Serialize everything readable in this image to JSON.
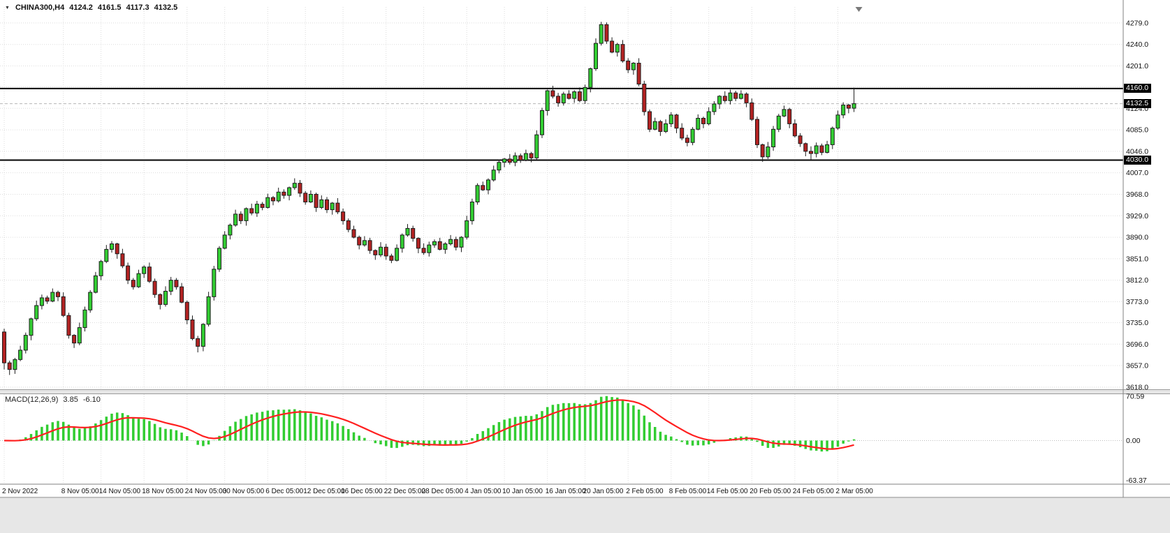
{
  "window": {
    "symbol_period": "CHINA300,H4",
    "ohlc": {
      "open": "4124.2",
      "high": "4161.5",
      "low": "4117.3",
      "close": "4132.5"
    }
  },
  "icons": {
    "symbol_dropdown": "▼"
  },
  "colors": {
    "up": "#32CD32",
    "down": "#B22222",
    "outline": "#1d1d1d",
    "histogram": "#32CD32",
    "signal": "#FF2020",
    "level_line": "#000000",
    "grid": "#DCDCDC",
    "badge_bg": "#000000",
    "badge_text": "#FFFFFF",
    "axis_text": "#111111"
  },
  "chart_data": {
    "type": "candlestick",
    "symbol": "CHINA300",
    "timeframe": "H4",
    "ylim": [
      3614,
      4308
    ],
    "grid": true,
    "price_axis_labels": [
      "4279.0",
      "4240.0",
      "4201.0",
      "4163.0",
      "4124.0",
      "4085.0",
      "4046.0",
      "4007.0",
      "3968.0",
      "3929.0",
      "3890.0",
      "3851.0",
      "3812.0",
      "3773.0",
      "3735.0",
      "3696.0",
      "3657.0",
      "3618.0"
    ],
    "horizontal_levels": [
      4160.0,
      4030.0
    ],
    "current_price": 4132.5,
    "price_badges": [
      {
        "label": "4160.0",
        "price": 4160.0,
        "kind": "level"
      },
      {
        "label": "4132.5",
        "price": 4132.5,
        "kind": "current"
      },
      {
        "label": "4030.0",
        "price": 4030.0,
        "kind": "level"
      }
    ],
    "time_ticks": [
      {
        "label": "2 Nov 2022",
        "bar": 0
      },
      {
        "label": "8 Nov 05:00",
        "bar": 11
      },
      {
        "label": "14 Nov 05:00",
        "bar": 18
      },
      {
        "label": "18 Nov 05:00",
        "bar": 26
      },
      {
        "label": "24 Nov 05:00",
        "bar": 34
      },
      {
        "label": "30 Nov 05:00",
        "bar": 41
      },
      {
        "label": "6 Dec 05:00",
        "bar": 49
      },
      {
        "label": "12 Dec 05:00",
        "bar": 56
      },
      {
        "label": "16 Dec 05:00",
        "bar": 63
      },
      {
        "label": "22 Dec 05:00",
        "bar": 71
      },
      {
        "label": "28 Dec 05:00",
        "bar": 78
      },
      {
        "label": "4 Jan 05:00",
        "bar": 86
      },
      {
        "label": "10 Jan 05:00",
        "bar": 93
      },
      {
        "label": "16 Jan 05:00",
        "bar": 101
      },
      {
        "label": "20 Jan 05:00",
        "bar": 108
      },
      {
        "label": "2 Feb 05:00",
        "bar": 116
      },
      {
        "label": "8 Feb 05:00",
        "bar": 124
      },
      {
        "label": "14 Feb 05:00",
        "bar": 131
      },
      {
        "label": "20 Feb 05:00",
        "bar": 139
      },
      {
        "label": "24 Feb 05:00",
        "bar": 147
      },
      {
        "label": "2 Mar 05:00",
        "bar": 155
      }
    ],
    "candles": [
      [
        3718,
        3724,
        3650,
        3662
      ],
      [
        3662,
        3666,
        3640,
        3650
      ],
      [
        3650,
        3671,
        3642,
        3668
      ],
      [
        3668,
        3693,
        3665,
        3685
      ],
      [
        3685,
        3717,
        3679,
        3712
      ],
      [
        3712,
        3744,
        3703,
        3742
      ],
      [
        3742,
        3775,
        3738,
        3766
      ],
      [
        3766,
        3786,
        3759,
        3780
      ],
      [
        3780,
        3784,
        3769,
        3774
      ],
      [
        3774,
        3797,
        3772,
        3790
      ],
      [
        3790,
        3793,
        3774,
        3782
      ],
      [
        3782,
        3790,
        3745,
        3748
      ],
      [
        3748,
        3753,
        3706,
        3712
      ],
      [
        3712,
        3714,
        3689,
        3698
      ],
      [
        3698,
        3735,
        3694,
        3726
      ],
      [
        3726,
        3764,
        3719,
        3758
      ],
      [
        3758,
        3794,
        3753,
        3790
      ],
      [
        3790,
        3827,
        3788,
        3820
      ],
      [
        3820,
        3849,
        3812,
        3846
      ],
      [
        3846,
        3876,
        3843,
        3868
      ],
      [
        3868,
        3883,
        3862,
        3878
      ],
      [
        3878,
        3880,
        3851,
        3860
      ],
      [
        3860,
        3869,
        3834,
        3838
      ],
      [
        3838,
        3844,
        3805,
        3812
      ],
      [
        3812,
        3816,
        3795,
        3800
      ],
      [
        3800,
        3831,
        3798,
        3824
      ],
      [
        3824,
        3839,
        3816,
        3836
      ],
      [
        3836,
        3844,
        3807,
        3810
      ],
      [
        3810,
        3815,
        3780,
        3786
      ],
      [
        3786,
        3788,
        3759,
        3768
      ],
      [
        3768,
        3801,
        3764,
        3792
      ],
      [
        3792,
        3818,
        3785,
        3812
      ],
      [
        3812,
        3816,
        3795,
        3800
      ],
      [
        3800,
        3807,
        3770,
        3772
      ],
      [
        3772,
        3775,
        3732,
        3740
      ],
      [
        3740,
        3748,
        3703,
        3706
      ],
      [
        3706,
        3711,
        3681,
        3692
      ],
      [
        3692,
        3734,
        3683,
        3732
      ],
      [
        3732,
        3791,
        3728,
        3782
      ],
      [
        3782,
        3838,
        3775,
        3832
      ],
      [
        3832,
        3874,
        3827,
        3870
      ],
      [
        3870,
        3901,
        3868,
        3894
      ],
      [
        3894,
        3915,
        3886,
        3912
      ],
      [
        3912,
        3940,
        3909,
        3932
      ],
      [
        3932,
        3937,
        3914,
        3920
      ],
      [
        3920,
        3944,
        3911,
        3942
      ],
      [
        3942,
        3951,
        3930,
        3934
      ],
      [
        3934,
        3956,
        3927,
        3950
      ],
      [
        3950,
        3954,
        3939,
        3944
      ],
      [
        3944,
        3969,
        3942,
        3962
      ],
      [
        3962,
        3965,
        3948,
        3956
      ],
      [
        3956,
        3980,
        3953,
        3972
      ],
      [
        3972,
        3977,
        3960,
        3966
      ],
      [
        3966,
        3982,
        3957,
        3980
      ],
      [
        3980,
        3997,
        3976,
        3988
      ],
      [
        3988,
        3994,
        3963,
        3970
      ],
      [
        3970,
        3974,
        3949,
        3954
      ],
      [
        3954,
        3975,
        3952,
        3968
      ],
      [
        3968,
        3971,
        3936,
        3944
      ],
      [
        3944,
        3966,
        3941,
        3958
      ],
      [
        3958,
        3963,
        3934,
        3940
      ],
      [
        3940,
        3954,
        3931,
        3952
      ],
      [
        3952,
        3961,
        3932,
        3936
      ],
      [
        3936,
        3942,
        3913,
        3920
      ],
      [
        3920,
        3924,
        3899,
        3904
      ],
      [
        3904,
        3911,
        3888,
        3890
      ],
      [
        3890,
        3893,
        3868,
        3876
      ],
      [
        3876,
        3892,
        3873,
        3884
      ],
      [
        3884,
        3889,
        3860,
        3866
      ],
      [
        3866,
        3868,
        3849,
        3858
      ],
      [
        3858,
        3881,
        3854,
        3872
      ],
      [
        3872,
        3878,
        3849,
        3856
      ],
      [
        3856,
        3860,
        3843,
        3848
      ],
      [
        3848,
        3877,
        3846,
        3870
      ],
      [
        3870,
        3897,
        3862,
        3894
      ],
      [
        3894,
        3914,
        3891,
        3906
      ],
      [
        3906,
        3911,
        3882,
        3888
      ],
      [
        3888,
        3890,
        3861,
        3870
      ],
      [
        3870,
        3879,
        3858,
        3862
      ],
      [
        3862,
        3882,
        3855,
        3876
      ],
      [
        3876,
        3886,
        3871,
        3882
      ],
      [
        3882,
        3889,
        3866,
        3868
      ],
      [
        3868,
        3881,
        3860,
        3878
      ],
      [
        3878,
        3894,
        3875,
        3886
      ],
      [
        3886,
        3891,
        3866,
        3872
      ],
      [
        3872,
        3892,
        3863,
        3890
      ],
      [
        3890,
        3929,
        3886,
        3920
      ],
      [
        3920,
        3960,
        3913,
        3954
      ],
      [
        3954,
        3988,
        3949,
        3984
      ],
      [
        3984,
        3991,
        3974,
        3976
      ],
      [
        3976,
        3997,
        3968,
        3994
      ],
      [
        3994,
        4020,
        3991,
        4012
      ],
      [
        4012,
        4031,
        4006,
        4026
      ],
      [
        4026,
        4034,
        4017,
        4032
      ],
      [
        4032,
        4041,
        4022,
        4026
      ],
      [
        4026,
        4044,
        4019,
        4038
      ],
      [
        4038,
        4042,
        4025,
        4030
      ],
      [
        4030,
        4049,
        4028,
        4042
      ],
      [
        4042,
        4045,
        4026,
        4034
      ],
      [
        4034,
        4084,
        4031,
        4076
      ],
      [
        4076,
        4125,
        4070,
        4120
      ],
      [
        4120,
        4158,
        4111,
        4156
      ],
      [
        4156,
        4165,
        4142,
        4146
      ],
      [
        4146,
        4152,
        4127,
        4134
      ],
      [
        4134,
        4154,
        4129,
        4150
      ],
      [
        4150,
        4157,
        4140,
        4142
      ],
      [
        4142,
        4157,
        4134,
        4154
      ],
      [
        4154,
        4162,
        4135,
        4138
      ],
      [
        4138,
        4167,
        4132,
        4162
      ],
      [
        4162,
        4198,
        4153,
        4196
      ],
      [
        4196,
        4251,
        4192,
        4242
      ],
      [
        4242,
        4281,
        4238,
        4276
      ],
      [
        4276,
        4280,
        4241,
        4246
      ],
      [
        4246,
        4253,
        4224,
        4226
      ],
      [
        4226,
        4243,
        4218,
        4240
      ],
      [
        4240,
        4248,
        4207,
        4210
      ],
      [
        4210,
        4215,
        4188,
        4194
      ],
      [
        4194,
        4208,
        4185,
        4206
      ],
      [
        4206,
        4215,
        4164,
        4168
      ],
      [
        4168,
        4174,
        4111,
        4118
      ],
      [
        4118,
        4122,
        4081,
        4086
      ],
      [
        4086,
        4107,
        4084,
        4100
      ],
      [
        4100,
        4103,
        4074,
        4082
      ],
      [
        4082,
        4104,
        4079,
        4096
      ],
      [
        4096,
        4117,
        4090,
        4112
      ],
      [
        4112,
        4114,
        4079,
        4088
      ],
      [
        4088,
        4097,
        4066,
        4070
      ],
      [
        4070,
        4076,
        4055,
        4062
      ],
      [
        4062,
        4090,
        4057,
        4086
      ],
      [
        4086,
        4113,
        4084,
        4106
      ],
      [
        4106,
        4109,
        4088,
        4096
      ],
      [
        4096,
        4126,
        4093,
        4118
      ],
      [
        4118,
        4137,
        4112,
        4132
      ],
      [
        4132,
        4148,
        4123,
        4146
      ],
      [
        4146,
        4155,
        4134,
        4138
      ],
      [
        4138,
        4158,
        4131,
        4152
      ],
      [
        4152,
        4156,
        4137,
        4142
      ],
      [
        4142,
        4157,
        4140,
        4150
      ],
      [
        4150,
        4153,
        4126,
        4134
      ],
      [
        4134,
        4142,
        4101,
        4104
      ],
      [
        4104,
        4109,
        4052,
        4058
      ],
      [
        4058,
        4060,
        4027,
        4036
      ],
      [
        4036,
        4063,
        4032,
        4054
      ],
      [
        4054,
        4092,
        4047,
        4086
      ],
      [
        4086,
        4114,
        4081,
        4110
      ],
      [
        4110,
        4129,
        4108,
        4122
      ],
      [
        4122,
        4125,
        4088,
        4096
      ],
      [
        4096,
        4104,
        4071,
        4074
      ],
      [
        4074,
        4079,
        4054,
        4060
      ],
      [
        4060,
        4062,
        4037,
        4046
      ],
      [
        4046,
        4055,
        4031,
        4042
      ],
      [
        4042,
        4062,
        4035,
        4056
      ],
      [
        4056,
        4060,
        4039,
        4044
      ],
      [
        4044,
        4065,
        4042,
        4058
      ],
      [
        4058,
        4091,
        4050,
        4088
      ],
      [
        4088,
        4120,
        4085,
        4112
      ],
      [
        4112,
        4135,
        4106,
        4130
      ],
      [
        4130,
        4132,
        4115,
        4124.2
      ],
      [
        4124.2,
        4161.5,
        4117.3,
        4132.5
      ]
    ],
    "macd": {
      "label": "MACD(12,26,9)",
      "params": [
        12,
        26,
        9
      ],
      "value_main": "3.85",
      "value_signal": "-6.10",
      "axis_labels": [
        "70.59",
        "0.00",
        "-63.37"
      ],
      "ylim": [
        -69.5,
        73.9
      ]
    }
  }
}
